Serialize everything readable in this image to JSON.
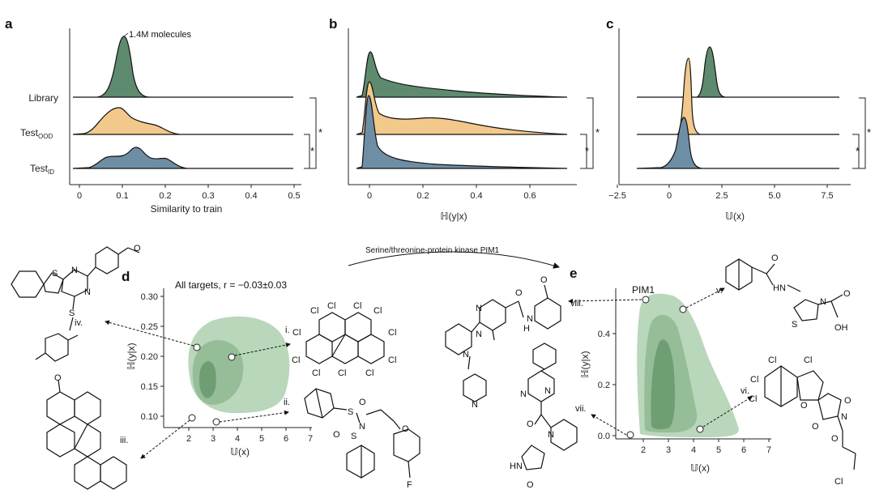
{
  "panels": {
    "a": {
      "label": "a",
      "annotation": "1.4M molecules",
      "ylabels": [
        "Library",
        "Test",
        "Test"
      ],
      "subs": [
        "OOD",
        "ID"
      ],
      "xticks": [
        "0",
        "0.1",
        "0.2",
        "0.3",
        "0.4",
        "0.5"
      ],
      "xlabel": "Similarity to train"
    },
    "b": {
      "label": "b",
      "xticks": [
        "0",
        "0.2",
        "0.4",
        "0.6"
      ],
      "xlabel": "ℍ(y|x)"
    },
    "c": {
      "label": "c",
      "xticks": [
        "−2.5",
        "0",
        "2.5",
        "5.0",
        "7.5"
      ],
      "xlabel": "𝕌(x)"
    },
    "d": {
      "label": "d",
      "title": "All targets, r = −0.03±0.03",
      "yticks": [
        "0.30",
        "0.25",
        "0.20",
        "0.15",
        "0.10"
      ],
      "xticks": [
        "2",
        "3",
        "4",
        "5",
        "6",
        "7"
      ],
      "xlabel": "𝕌(x)",
      "ylabel": "ℍ(y|x)"
    },
    "e": {
      "label": "e",
      "title": "PIM1",
      "yticks": [
        "0.4",
        "0.2",
        "0.0"
      ],
      "xticks": [
        "2",
        "3",
        "4",
        "5",
        "6",
        "7"
      ],
      "xlabel": "𝕌(x)",
      "ylabel": "ℍ(y|x)"
    }
  },
  "significance": "*",
  "arrow_label": "Serine/threonine-protein kinase PIM1",
  "romans": [
    "i.",
    "ii.",
    "iii.",
    "iv.",
    "v.",
    "vi.",
    "vii.",
    "viii."
  ],
  "atoms": {
    "s": "S",
    "n": "N",
    "o": "O",
    "cl": "Cl",
    "h": "H",
    "f": "F",
    "nh": "NH",
    "hn": "HN",
    "oh": "OH"
  },
  "colors": {
    "green": "#5e8a6f",
    "orange": "#f2c98a",
    "blue": "#6e8ea6",
    "cloud": "#9cc39d"
  }
}
